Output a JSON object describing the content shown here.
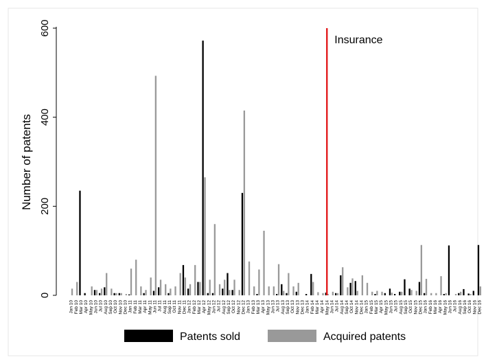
{
  "chart_data": {
    "type": "bar",
    "title": "",
    "xlabel": "",
    "ylabel": "Number of patents",
    "ylim": [
      0,
      620
    ],
    "yticks": [
      0,
      200,
      400,
      600
    ],
    "grid": false,
    "legend_position": "bottom",
    "categories": [
      "Jan 10",
      "Feb 10",
      "Mar 10",
      "Apr 10",
      "May 10",
      "Jun 10",
      "Jul 10",
      "Aug 10",
      "Sep 10",
      "Oct 10",
      "Nov 10",
      "Dec 10",
      "Jan 11",
      "Feb 11",
      "Mar 11",
      "Apr 11",
      "May 11",
      "Jun 11",
      "Jul 11",
      "Aug 11",
      "Sep 11",
      "Oct 11",
      "Nov 11",
      "Dec 11",
      "Jan 12",
      "Feb 12",
      "Mar 12",
      "Apr 12",
      "May 12",
      "Jun 12",
      "Jul 12",
      "Aug 12",
      "Sep 12",
      "Oct 12",
      "Nov 12",
      "Dec 12",
      "Jan 13",
      "Feb 13",
      "Mar 13",
      "Apr 13",
      "May 13",
      "Jun 13",
      "Jul 13",
      "Aug 13",
      "Sep 13",
      "Oct 13",
      "Nov 13",
      "Dec 13",
      "Jan 14",
      "Feb 14",
      "Mar 14",
      "Apr 14",
      "May 14",
      "Jun 14",
      "Jul 14",
      "Aug 14",
      "Sep 14",
      "Oct 14",
      "Nov 14",
      "Dec 14",
      "Jan 15",
      "Feb 15",
      "Mar 15",
      "Apr 15",
      "May 15",
      "Jun 15",
      "Jul 15",
      "Aug 15",
      "Sep 15",
      "Oct 15",
      "Nov 15",
      "Dec 15",
      "Jan 16",
      "Feb 16",
      "Mar 16",
      "Apr 16",
      "May 16",
      "Jun 16",
      "Jul 16",
      "Aug 16",
      "Sep 16",
      "Oct 16",
      "Nov 16",
      "Dec 16"
    ],
    "series": [
      {
        "name": "Patents sold",
        "color": "#000000",
        "values": [
          0,
          0,
          235,
          5,
          0,
          12,
          5,
          18,
          0,
          5,
          5,
          0,
          2,
          0,
          0,
          5,
          0,
          10,
          18,
          0,
          5,
          0,
          0,
          68,
          15,
          0,
          30,
          572,
          5,
          5,
          0,
          15,
          50,
          12,
          0,
          230,
          0,
          0,
          3,
          0,
          0,
          0,
          3,
          25,
          5,
          0,
          8,
          0,
          3,
          48,
          0,
          0,
          6,
          0,
          5,
          45,
          0,
          28,
          32,
          0,
          0,
          0,
          3,
          0,
          5,
          15,
          3,
          8,
          36,
          15,
          0,
          30,
          5,
          0,
          0,
          0,
          3,
          112,
          0,
          5,
          14,
          4,
          10,
          113
        ]
      },
      {
        "name": "Acquired patents",
        "color": "#999999",
        "values": [
          15,
          30,
          0,
          0,
          20,
          12,
          15,
          50,
          15,
          5,
          5,
          3,
          60,
          80,
          20,
          12,
          40,
          493,
          35,
          25,
          15,
          20,
          50,
          40,
          25,
          68,
          30,
          265,
          35,
          160,
          25,
          35,
          12,
          35,
          12,
          415,
          76,
          20,
          58,
          145,
          20,
          20,
          70,
          10,
          50,
          20,
          28,
          0,
          0,
          30,
          7,
          5,
          3,
          8,
          5,
          63,
          18,
          38,
          10,
          45,
          28,
          8,
          10,
          8,
          0,
          6,
          0,
          8,
          0,
          12,
          10,
          113,
          37,
          5,
          5,
          43,
          5,
          0,
          3,
          8,
          0,
          3,
          0,
          20
        ]
      }
    ],
    "annotations": [
      {
        "type": "vline",
        "at_category": "May 14",
        "label": "Insurance",
        "color": "#e31a1c"
      }
    ]
  },
  "legend": {
    "items": [
      {
        "label": "Patents sold",
        "color": "#000000"
      },
      {
        "label": "Acquired patents",
        "color": "#999999"
      }
    ]
  }
}
